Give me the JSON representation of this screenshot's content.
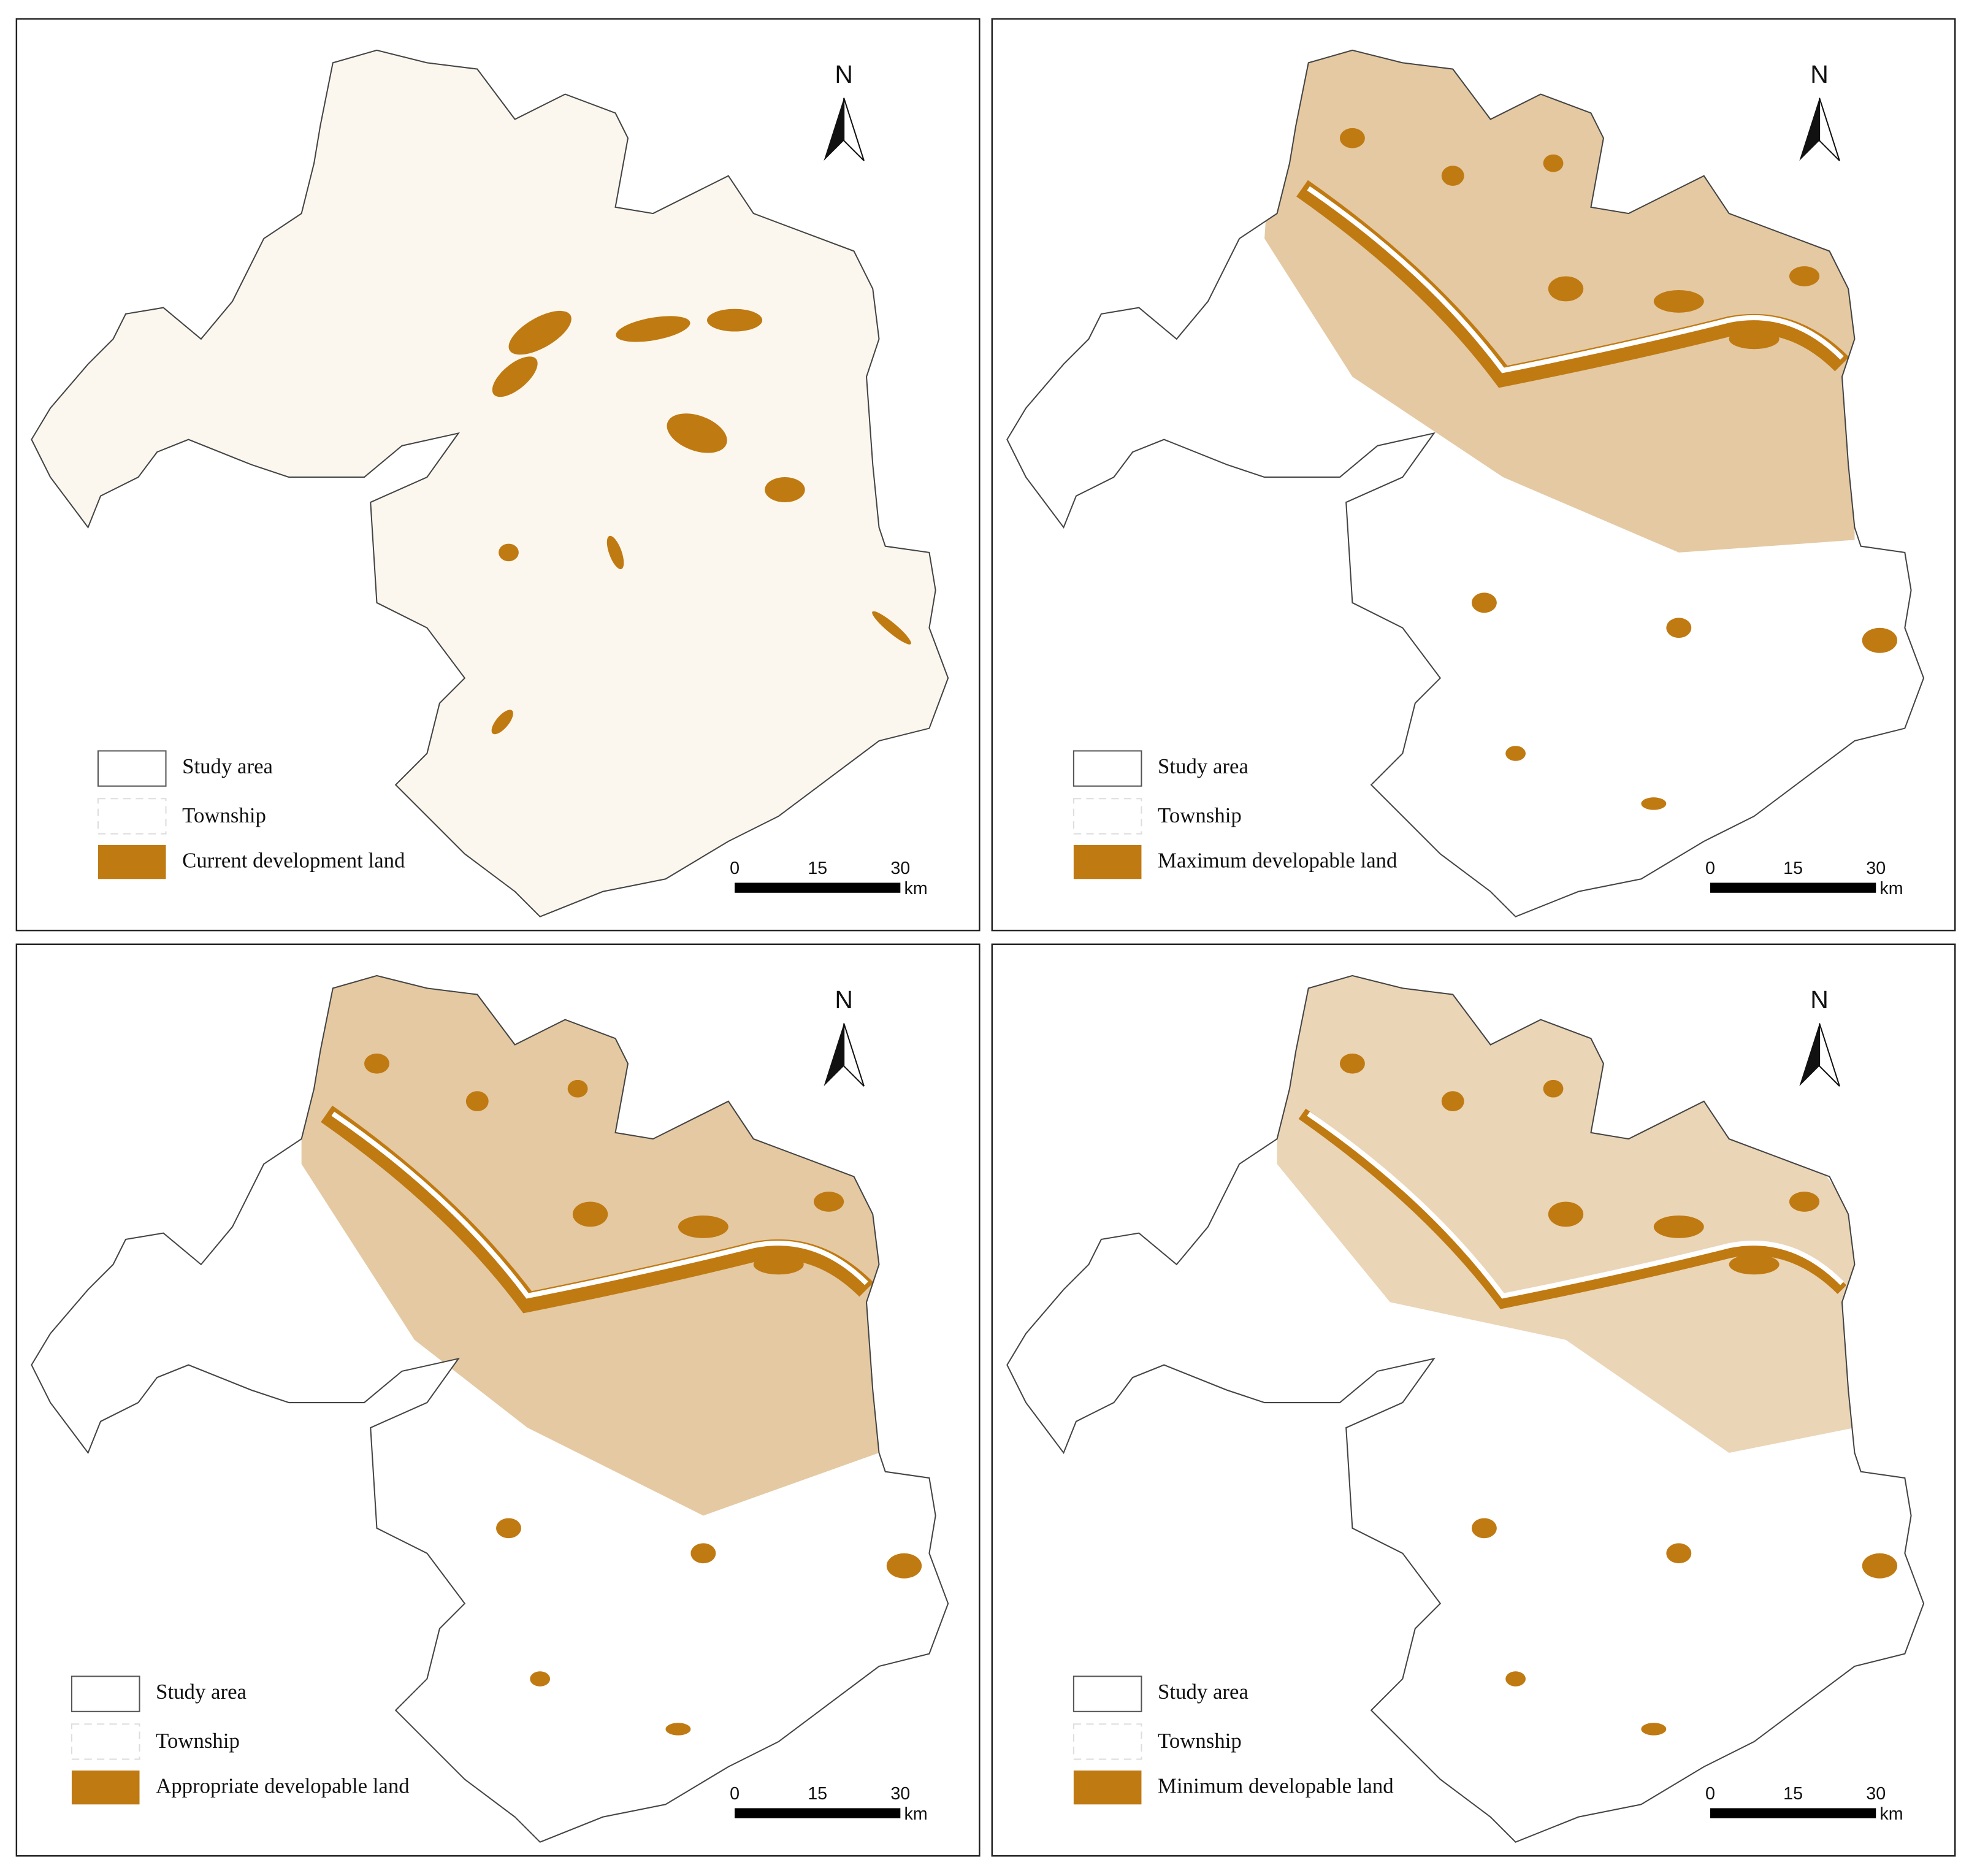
{
  "panels": [
    {
      "legend": [
        "Study area",
        "Township",
        "Current development land"
      ],
      "north": "N",
      "scale_labels": [
        "0",
        "15",
        "30"
      ],
      "scale_unit": "km"
    },
    {
      "legend": [
        "Study area",
        "Township",
        "Maximum developable land"
      ],
      "north": "N",
      "scale_labels": [
        "0",
        "15",
        "30"
      ],
      "scale_unit": "km"
    },
    {
      "legend": [
        "Study area",
        "Township",
        "Appropriate developable land"
      ],
      "north": "N",
      "scale_labels": [
        "0",
        "15",
        "30"
      ],
      "scale_unit": "km"
    },
    {
      "legend": [
        "Study area",
        "Township",
        "Minimum developable land"
      ],
      "north": "N",
      "scale_labels": [
        "0",
        "15",
        "30"
      ],
      "scale_unit": "km"
    }
  ]
}
